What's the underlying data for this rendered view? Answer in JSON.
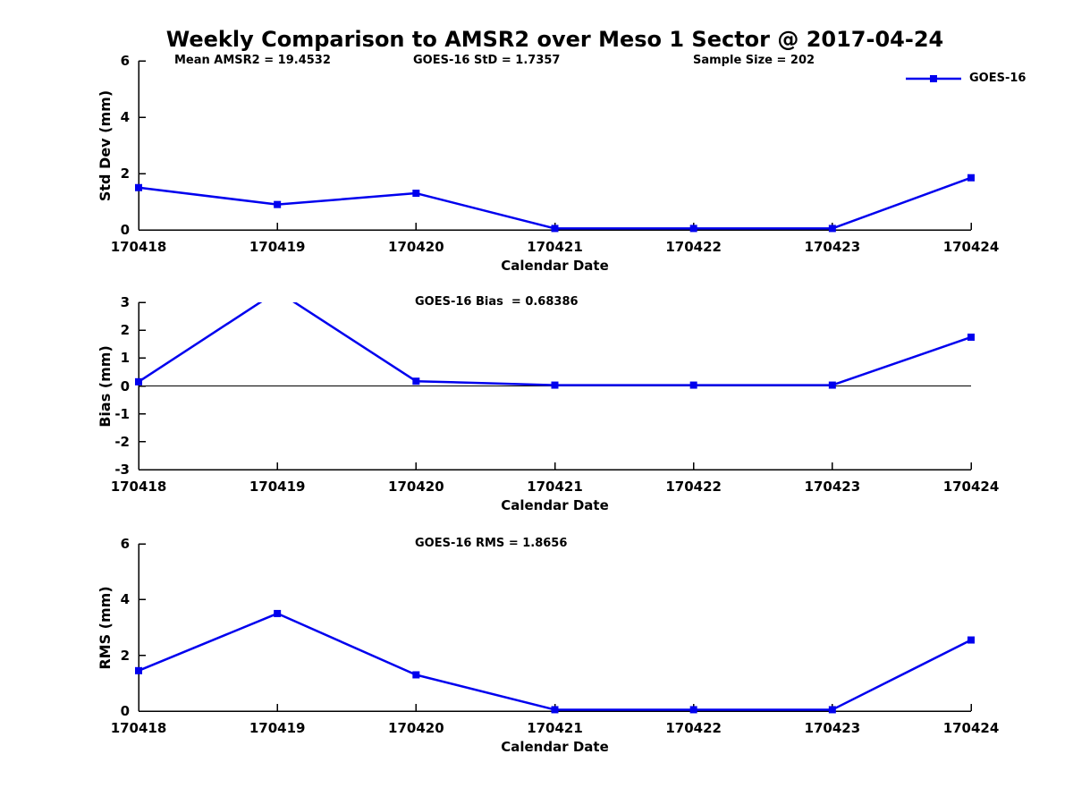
{
  "chart_data": {
    "type": "line",
    "title": "Weekly Comparison to AMSR2 over Meso 1 Sector @ 2017-04-24",
    "categories": [
      "170418",
      "170419",
      "170420",
      "170421",
      "170422",
      "170423",
      "170424"
    ],
    "xlabel": "Calendar Date",
    "line_color": "#0000EE",
    "marker": "square",
    "legend": {
      "entries": [
        "GOES-16"
      ],
      "position": "top-right"
    },
    "subplots": [
      {
        "name": "std-dev",
        "ylabel": "Std Dev (mm)",
        "ylim": [
          0,
          6
        ],
        "yticks": [
          0,
          2,
          4,
          6
        ],
        "grid": false,
        "series": [
          {
            "name": "GOES-16",
            "values": [
              1.5,
              0.9,
              1.3,
              0.05,
              0.05,
              0.05,
              1.85
            ]
          }
        ],
        "annotations": [
          "Mean AMSR2 = 19.4532",
          "GOES-16 StD = 1.7357",
          "Sample Size = 202"
        ]
      },
      {
        "name": "bias",
        "ylabel": "Bias (mm)",
        "ylim": [
          -3,
          3
        ],
        "yticks": [
          -3,
          -2,
          -1,
          0,
          1,
          2,
          3
        ],
        "grid": false,
        "zero_line": true,
        "series": [
          {
            "name": "GOES-16",
            "values": [
              0.15,
              3.4,
              0.17,
              0.03,
              0.03,
              0.03,
              1.75
            ]
          }
        ],
        "annotations": [
          "GOES-16 Bias  = 0.68386"
        ]
      },
      {
        "name": "rms",
        "ylabel": "RMS (mm)",
        "ylim": [
          0,
          6
        ],
        "yticks": [
          0,
          2,
          4,
          6
        ],
        "grid": false,
        "series": [
          {
            "name": "GOES-16",
            "values": [
              1.45,
              3.5,
              1.3,
              0.05,
              0.05,
              0.05,
              2.55
            ]
          }
        ],
        "annotations": [
          "GOES-16 RMS = 1.8656"
        ]
      }
    ]
  }
}
